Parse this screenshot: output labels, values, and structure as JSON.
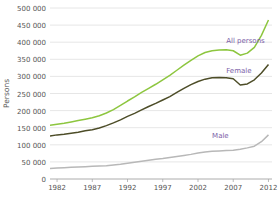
{
  "chart_data": {
    "type": "line",
    "y_label": "Persons",
    "x": [
      1981,
      1982,
      1983,
      1984,
      1985,
      1986,
      1987,
      1988,
      1989,
      1990,
      1991,
      1992,
      1993,
      1994,
      1995,
      1996,
      1997,
      1998,
      1999,
      2000,
      2001,
      2002,
      2003,
      2004,
      2005,
      2006,
      2007,
      2008,
      2009,
      2010,
      2011,
      2012
    ],
    "series": [
      {
        "color": "#8dc63f",
        "values": [
          157000,
          160000,
          163000,
          167000,
          171000,
          175000,
          179000,
          185000,
          193000,
          203000,
          215000,
          228000,
          240000,
          253000,
          265000,
          277000,
          290000,
          303000,
          318000,
          333000,
          347000,
          360000,
          370000,
          375000,
          377000,
          378000,
          375000,
          362000,
          368000,
          385000,
          420000,
          465000
        ]
      },
      {
        "color": "#4d4d28",
        "values": [
          126000,
          129000,
          131000,
          134000,
          137000,
          141000,
          144000,
          149000,
          156000,
          164000,
          173000,
          183000,
          192000,
          202000,
          212000,
          221000,
          231000,
          241000,
          253000,
          265000,
          276000,
          285000,
          292000,
          296000,
          297000,
          296000,
          293000,
          275000,
          278000,
          290000,
          310000,
          335000
        ]
      },
      {
        "color": "#b8b8b8",
        "values": [
          31000,
          32000,
          33000,
          34000,
          35000,
          36000,
          37000,
          38000,
          39000,
          41000,
          43000,
          46000,
          49000,
          52000,
          55000,
          58000,
          60000,
          63000,
          66000,
          69000,
          72000,
          76000,
          79000,
          81000,
          82000,
          83000,
          84000,
          87000,
          91000,
          96000,
          109000,
          129000
        ]
      }
    ],
    "annotations": [
      {
        "text": "All persons",
        "x": 2006,
        "y": 395000,
        "color": "#7b5ea7"
      },
      {
        "text": "Female",
        "x": 2006,
        "y": 308000,
        "color": "#7b5ea7"
      },
      {
        "text": "Male",
        "x": 2004,
        "y": 118000,
        "color": "#7b5ea7"
      }
    ],
    "xlim": [
      1981,
      2012.5
    ],
    "xticks": [
      1982,
      1987,
      1992,
      1997,
      2002,
      2007,
      2012
    ],
    "ylim": [
      0,
      500000
    ],
    "yticks": [
      0,
      {
        "value": 50000,
        "label": "50 000"
      },
      {
        "value": 100000,
        "label": "100 000"
      },
      {
        "value": 150000,
        "label": "150 000"
      },
      {
        "value": 200000,
        "label": "200 000"
      },
      {
        "value": 250000,
        "label": "250 000"
      },
      {
        "value": 300000,
        "label": "300 000"
      },
      {
        "value": 350000,
        "label": "350 000"
      },
      {
        "value": 400000,
        "label": "400 000"
      },
      {
        "value": 450000,
        "label": "450 000"
      },
      {
        "value": 500000,
        "label": "500 000"
      }
    ],
    "grid": true
  }
}
